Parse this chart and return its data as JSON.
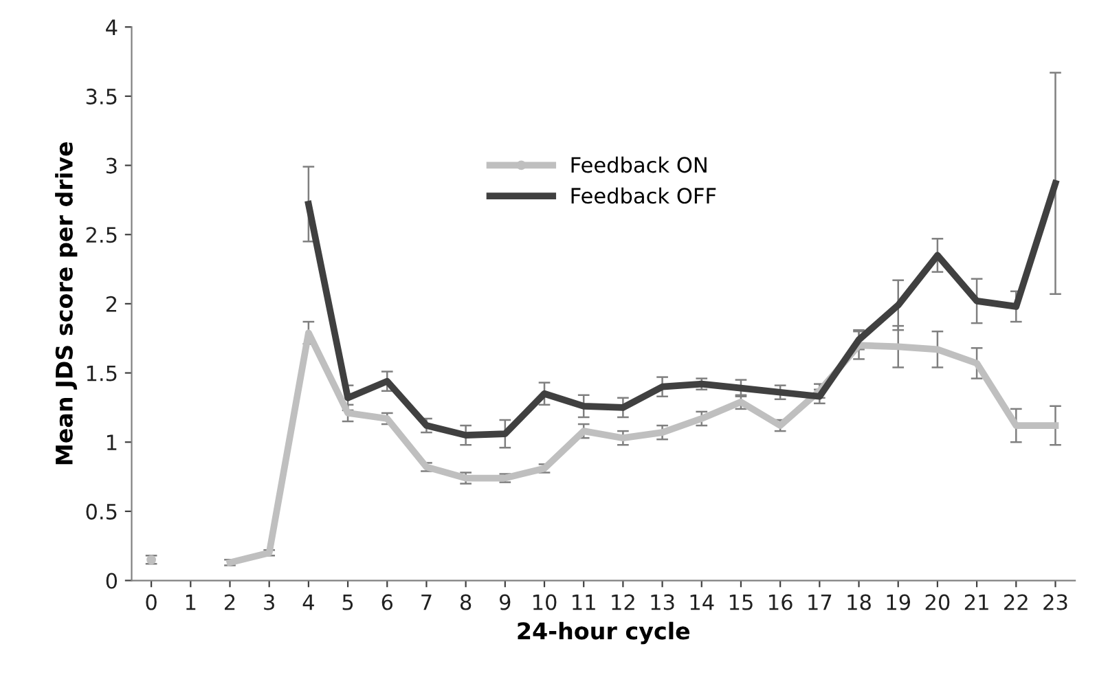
{
  "chart_data": {
    "type": "line",
    "xlabel": "24-hour cycle",
    "ylabel": "Mean JDS score per drive",
    "categories": [
      "0",
      "1",
      "2",
      "3",
      "4",
      "5",
      "6",
      "7",
      "8",
      "9",
      "10",
      "11",
      "12",
      "13",
      "14",
      "15",
      "16",
      "17",
      "18",
      "19",
      "20",
      "21",
      "22",
      "23"
    ],
    "ylim": [
      0,
      4
    ],
    "yticks": [
      0,
      0.5,
      1,
      1.5,
      2,
      2.5,
      3,
      3.5,
      4
    ],
    "grid": false,
    "legend": "top",
    "marker": "none",
    "line_style": "solid",
    "series": [
      {
        "name": "Feedback ON",
        "color": "#bfbfbf",
        "values": [
          0.15,
          null,
          0.13,
          0.2,
          1.79,
          1.21,
          1.17,
          0.82,
          0.74,
          0.74,
          0.81,
          1.08,
          1.03,
          1.07,
          1.17,
          1.29,
          1.12,
          1.37,
          1.7,
          1.69,
          1.67,
          1.57,
          1.12,
          1.12
        ],
        "errors": [
          0.03,
          null,
          0.02,
          0.02,
          0.08,
          0.06,
          0.04,
          0.03,
          0.04,
          0.03,
          0.03,
          0.05,
          0.05,
          0.05,
          0.05,
          0.05,
          0.04,
          0.05,
          0.1,
          0.15,
          0.13,
          0.11,
          0.12,
          0.14
        ]
      },
      {
        "name": "Feedback OFF",
        "color": "#404040",
        "values": [
          null,
          null,
          null,
          null,
          2.72,
          1.32,
          1.44,
          1.12,
          1.05,
          1.06,
          1.35,
          1.26,
          1.25,
          1.4,
          1.42,
          1.39,
          1.36,
          1.33,
          1.74,
          1.99,
          2.35,
          2.02,
          1.98,
          2.87
        ],
        "errors": [
          null,
          null,
          null,
          null,
          0.27,
          0.09,
          0.07,
          0.05,
          0.07,
          0.1,
          0.08,
          0.08,
          0.07,
          0.07,
          0.04,
          0.06,
          0.05,
          0.05,
          0.07,
          0.18,
          0.12,
          0.16,
          0.11,
          0.8
        ]
      }
    ]
  }
}
